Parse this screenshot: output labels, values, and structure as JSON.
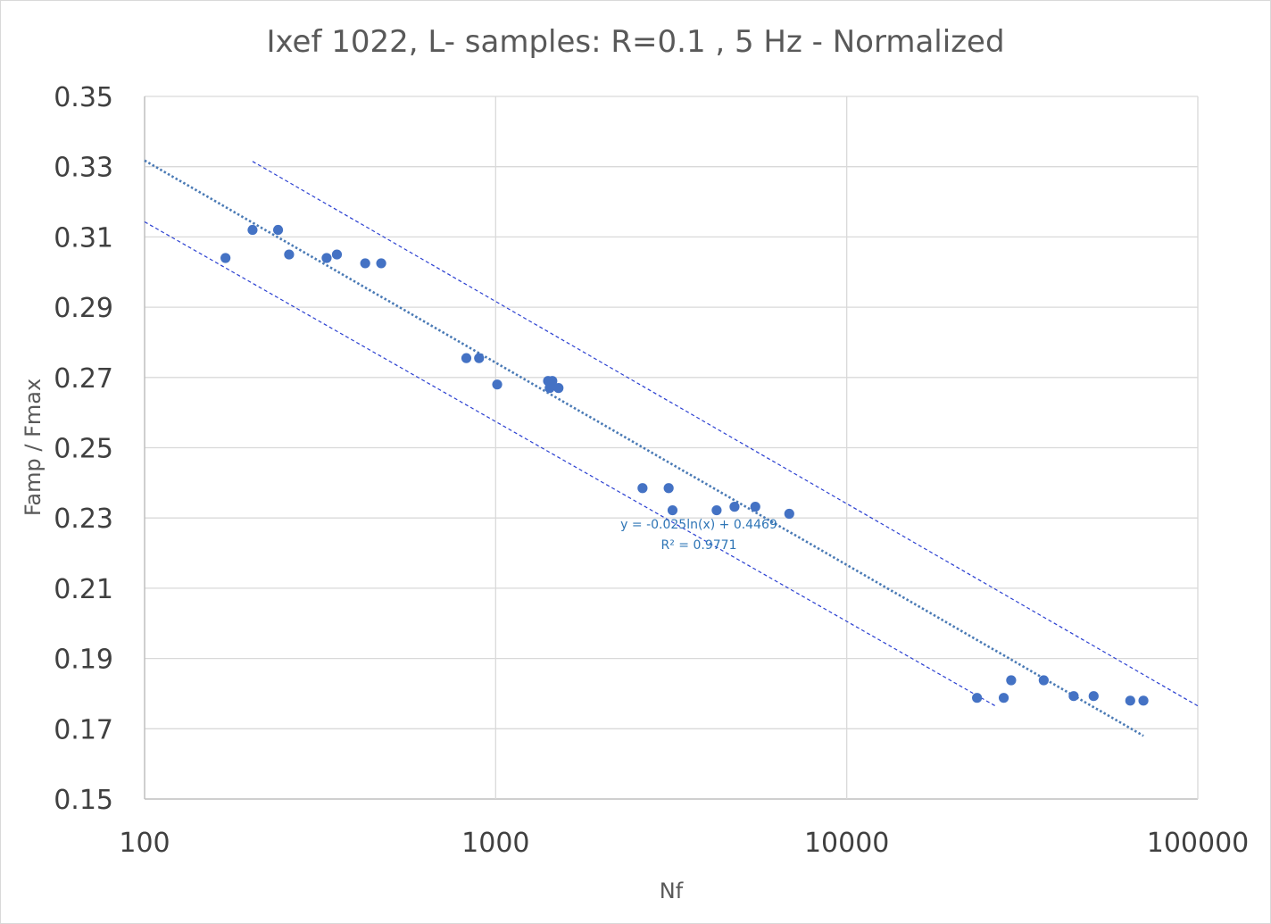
{
  "chart_data": {
    "type": "scatter",
    "title": "Ixef 1022, L- samples: R=0.1 , 5 Hz - Normalized",
    "xlabel": "Nf",
    "ylabel": "Famp / Fmax",
    "x_scale": "log",
    "xlim": [
      100,
      100000
    ],
    "ylim": [
      0.15,
      0.35
    ],
    "x_ticks": [
      100,
      1000,
      10000,
      100000
    ],
    "x_tick_labels": [
      "100",
      "1000",
      "10000",
      "100000"
    ],
    "y_ticks": [
      0.15,
      0.17,
      0.19,
      0.21,
      0.23,
      0.25,
      0.27,
      0.29,
      0.31,
      0.33,
      0.35
    ],
    "y_tick_labels": [
      "0.15",
      "0.17",
      "0.19",
      "0.21",
      "0.23",
      "0.25",
      "0.27",
      "0.29",
      "0.31",
      "0.33",
      "0.35"
    ],
    "grid": true,
    "point_color": "#4472c4",
    "series": [
      {
        "name": "Famp / Fmax",
        "points": [
          [
            170,
            0.304
          ],
          [
            203,
            0.312
          ],
          [
            240,
            0.312
          ],
          [
            258,
            0.305
          ],
          [
            330,
            0.304
          ],
          [
            353,
            0.305
          ],
          [
            425,
            0.3025
          ],
          [
            472,
            0.3025
          ],
          [
            825,
            0.2755
          ],
          [
            897,
            0.2755
          ],
          [
            1010,
            0.268
          ],
          [
            1410,
            0.269
          ],
          [
            1425,
            0.267
          ],
          [
            1450,
            0.269
          ],
          [
            1510,
            0.267
          ],
          [
            2620,
            0.2385
          ],
          [
            3110,
            0.2385
          ],
          [
            3190,
            0.2322
          ],
          [
            4260,
            0.2322
          ],
          [
            4790,
            0.2332
          ],
          [
            5490,
            0.2332
          ],
          [
            6860,
            0.2312
          ],
          [
            23500,
            0.1788
          ],
          [
            28000,
            0.1788
          ],
          [
            29400,
            0.1838
          ],
          [
            36400,
            0.1838
          ],
          [
            44300,
            0.1793
          ],
          [
            50500,
            0.1793
          ],
          [
            64200,
            0.178
          ],
          [
            70000,
            0.178
          ]
        ]
      }
    ],
    "trendline": {
      "type": "logarithmic",
      "a": -0.025,
      "b": 0.4469,
      "x_range": [
        100,
        70000
      ],
      "color": "#4a7ab5",
      "style": "dotted",
      "equation": "y = -0.025ln(x) + 0.4469",
      "r_squared": "R² = 0.9771"
    },
    "bounds": [
      {
        "name": "upper bound",
        "x_start": 203,
        "x_end": 100000,
        "y_start": 0.3315,
        "y_end": 0.1765,
        "color": "#2a3fd1",
        "style": "dashed"
      },
      {
        "name": "lower bound",
        "x_start": 100,
        "x_end": 26500,
        "y_start": 0.3143,
        "y_end": 0.1765,
        "color": "#2a3fd1",
        "style": "dashed"
      }
    ]
  }
}
